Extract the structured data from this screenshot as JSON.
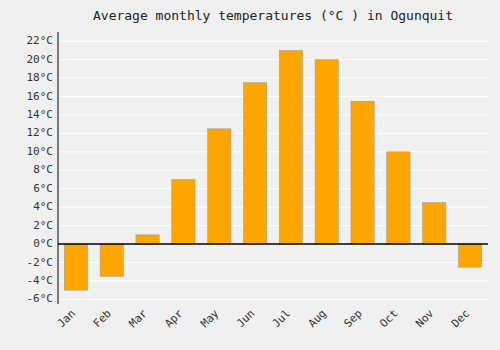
{
  "chart_data": {
    "type": "bar",
    "title": "Average monthly temperatures (°C ) in Ogunquit",
    "categories": [
      "Jan",
      "Feb",
      "Mar",
      "Apr",
      "May",
      "Jun",
      "Jul",
      "Aug",
      "Sep",
      "Oct",
      "Nov",
      "Dec"
    ],
    "values": [
      -5.0,
      -3.5,
      1.0,
      7.0,
      12.5,
      17.5,
      21.0,
      20.0,
      15.5,
      10.0,
      4.5,
      -2.5
    ],
    "color": "#FFA500",
    "ylim": [
      -6.5,
      23
    ],
    "yticks": [
      {
        "value": -6,
        "label": "-6°C"
      },
      {
        "value": -4,
        "label": "-4°C"
      },
      {
        "value": -2,
        "label": "-2°C"
      },
      {
        "value": 0,
        "label": "0°C"
      },
      {
        "value": 2,
        "label": "2°C"
      },
      {
        "value": 4,
        "label": "4°C"
      },
      {
        "value": 6,
        "label": "6°C"
      },
      {
        "value": 8,
        "label": "8°C"
      },
      {
        "value": 10,
        "label": "10°C"
      },
      {
        "value": 12,
        "label": "12°C"
      },
      {
        "value": 14,
        "label": "14°C"
      },
      {
        "value": 16,
        "label": "16°C"
      },
      {
        "value": 18,
        "label": "18°C"
      },
      {
        "value": 20,
        "label": "20°C"
      },
      {
        "value": 22,
        "label": "22°C"
      }
    ],
    "grid": true
  }
}
